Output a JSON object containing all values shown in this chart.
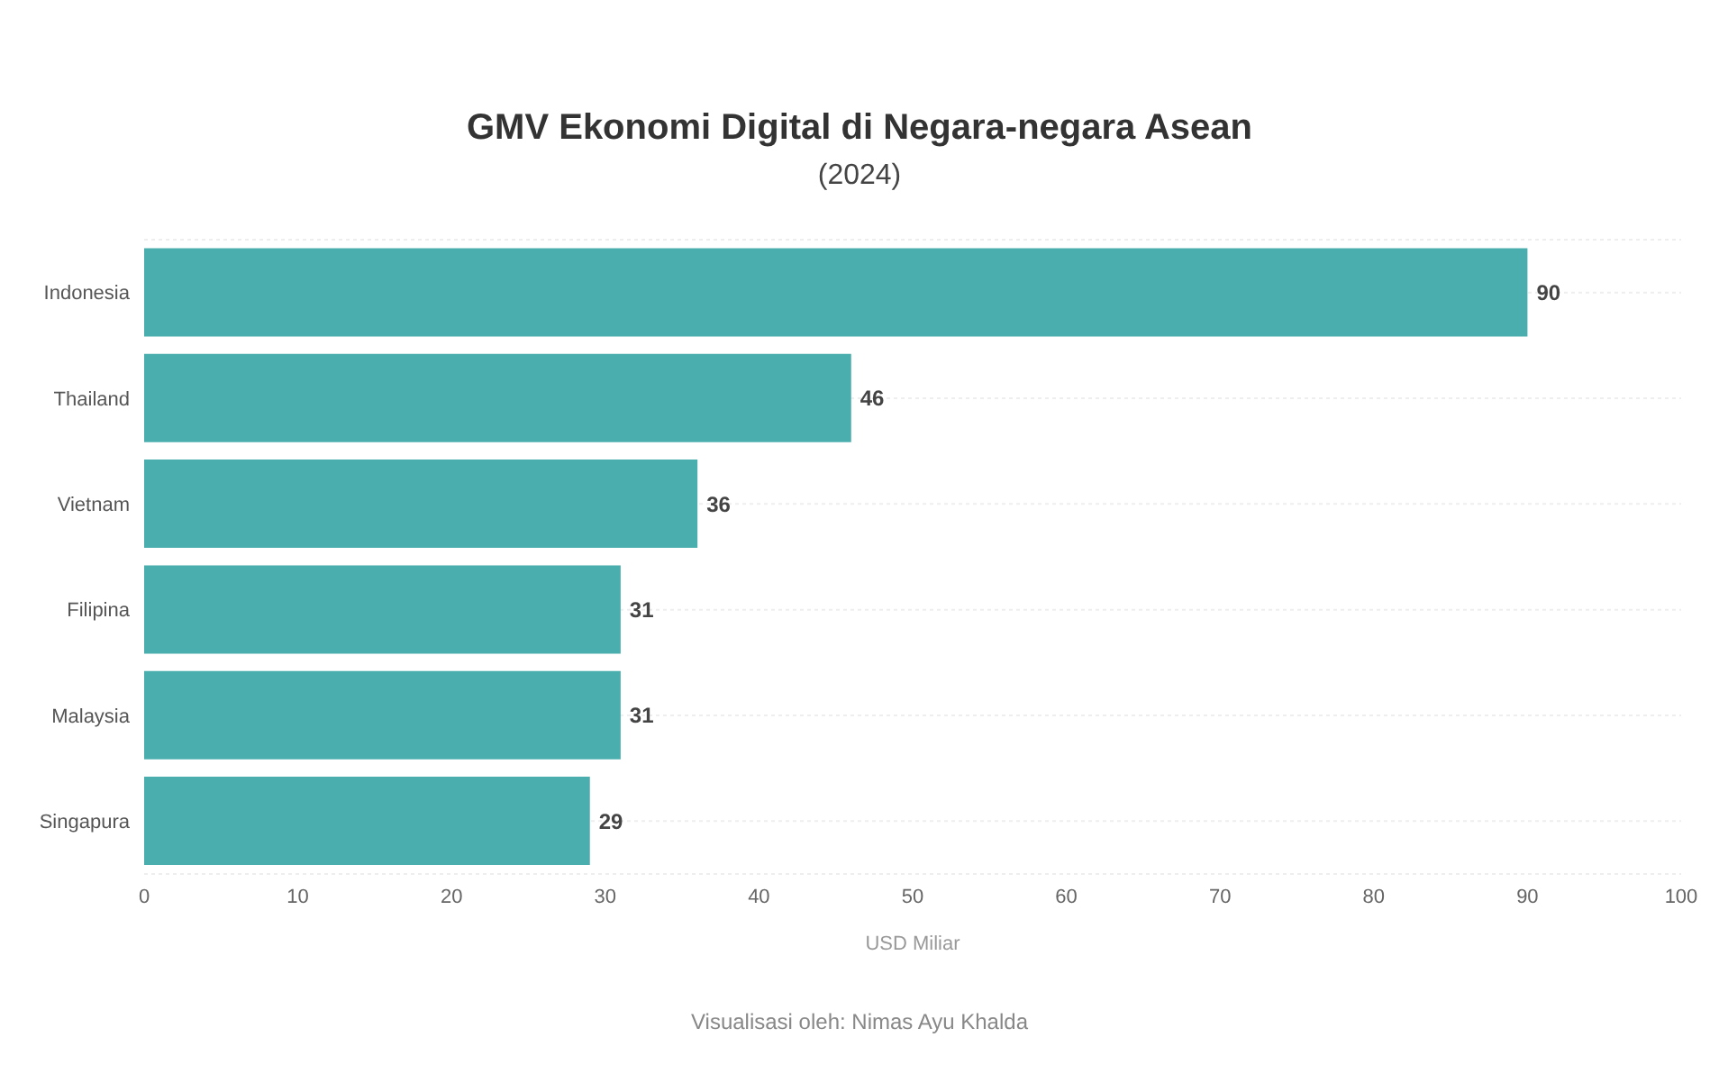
{
  "chart_data": {
    "type": "bar",
    "orientation": "horizontal",
    "title": "GMV Ekonomi Digital di Negara-negara Asean",
    "subtitle": "(2024)",
    "xlabel": "USD Miliar",
    "categories": [
      "Indonesia",
      "Thailand",
      "Vietnam",
      "Filipina",
      "Malaysia",
      "Singapura"
    ],
    "values": [
      90,
      46,
      36,
      31,
      31,
      29
    ],
    "color": "#4aaeae",
    "data_labels": true,
    "xlim": [
      0,
      100
    ],
    "xticks": [
      0,
      10,
      20,
      30,
      40,
      50,
      60,
      70,
      80,
      90,
      100
    ],
    "grid": "y",
    "annotations": [
      "Visualisasi oleh: Nimas Ayu Khalda"
    ]
  }
}
